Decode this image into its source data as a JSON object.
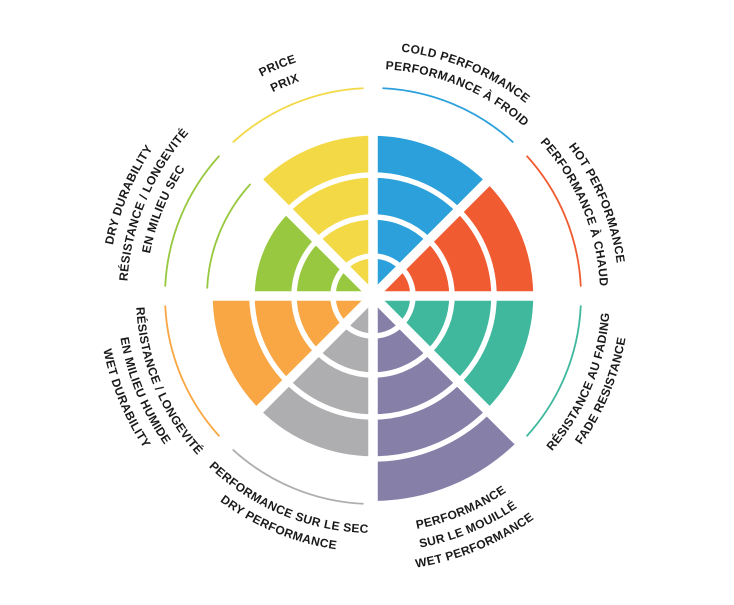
{
  "chart_data": {
    "type": "bar",
    "variant": "polar-wheel-coxcomb",
    "title": "",
    "max_value": 5,
    "categories": [
      "Cold Performance",
      "Hot Performance",
      "Fade Resistance",
      "Wet Performance",
      "Dry Performance",
      "Wet Durability",
      "Dry Durability",
      "Price"
    ],
    "values": [
      4,
      4,
      4,
      5,
      4,
      4,
      3,
      4
    ],
    "background": "#ffffff",
    "text_color": "#1a1a1a",
    "separator_color": "#ffffff",
    "sectors": [
      {
        "id": "cold-performance",
        "value": 4,
        "color": "#2ba0db",
        "label_flipped": false,
        "lines": [
          "COLD PERFORMANCE",
          "PERFORMANCE À FROID"
        ]
      },
      {
        "id": "hot-performance",
        "value": 4,
        "color": "#f15b31",
        "label_flipped": false,
        "lines": [
          "HOT PERFORMANCE",
          "PERFORMANCE À CHAUD"
        ]
      },
      {
        "id": "fade-resistance",
        "value": 4,
        "color": "#3fb89e",
        "label_flipped": true,
        "lines": [
          "RÉSISTANCE AU FADING",
          "FADE RESISTANCE"
        ]
      },
      {
        "id": "wet-performance",
        "value": 5,
        "color": "#8680a9",
        "label_flipped": true,
        "lines": [
          "PERFORMANCE",
          "SUR LE MOUILLÉ",
          "WET PERFORMANCE"
        ]
      },
      {
        "id": "dry-performance",
        "value": 4,
        "color": "#aeaeb0",
        "label_flipped": true,
        "lines": [
          "PERFORMANCE SUR LE SEC",
          "DRY PERFORMANCE"
        ]
      },
      {
        "id": "wet-durability",
        "value": 4,
        "color": "#f9a644",
        "label_flipped": true,
        "lines": [
          "RÉSISTANCE / LONGEVITÉ",
          "EN MILIEU HUMIDE",
          "WET DURABILITY"
        ]
      },
      {
        "id": "dry-durability",
        "value": 3,
        "color": "#97c83f",
        "label_flipped": false,
        "lines": [
          "DRY DURABILITY",
          "RÉSISTANCE / LONGEVITÉ",
          "EN MILIEU SEC"
        ]
      },
      {
        "id": "price",
        "value": 4,
        "color": "#f2d945",
        "label_flipped": false,
        "lines": [
          "PRICE",
          "PRIX"
        ]
      }
    ],
    "layout": {
      "center": [
        373,
        296
      ],
      "ring_radii": [
        40,
        79,
        121,
        163,
        205
      ],
      "sector_angle_deg": 45,
      "start_angle_deg": 0,
      "ring_separator_width": 5.5,
      "spoke_separator_width": 9.5,
      "scale_arc_width": 1.8,
      "scale_arc_inset_deg": 2.8,
      "label_base_radius": 227,
      "label_flipped_base_radius": 237,
      "label_line_step": 19,
      "grid": "white separators over colored wedges",
      "legend": "curved bilingual labels around wheel"
    }
  }
}
